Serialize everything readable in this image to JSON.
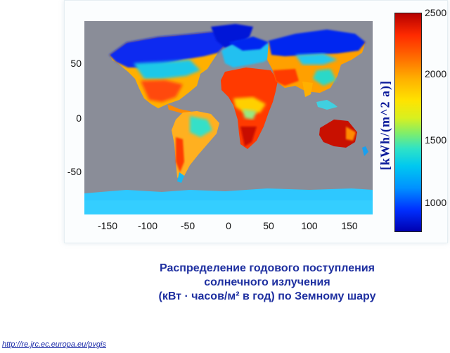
{
  "map": {
    "x_ticks": [
      "-150",
      "-100",
      "-50",
      "0",
      "50",
      "100",
      "150"
    ],
    "y_ticks": [
      "50",
      "0",
      "-50"
    ],
    "colorbar": {
      "label": "[kWh/(m^2 a)]",
      "ticks": [
        "2500",
        "2000",
        "1500",
        "1000"
      ],
      "colors": [
        "#b50000",
        "#ff6a00",
        "#ffe300",
        "#2fe3c6",
        "#0092ff",
        "#0000b0"
      ]
    },
    "ocean_color": "#8a8d98"
  },
  "caption": {
    "line1": "Распределение годового поступления",
    "line2": "солнечного излучения",
    "line3": "(кВт · часов/м² в год) по Земному шару"
  },
  "source_link": "http://re.jrc.ec.europa.eu/pvgis"
}
